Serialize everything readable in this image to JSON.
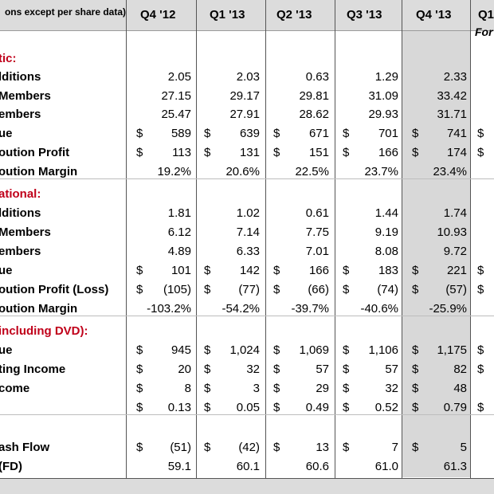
{
  "header": {
    "label": "ons except per share data)",
    "quarters": [
      "Q4 '12",
      "Q1 '13",
      "Q2 '13",
      "Q3 '13",
      "Q4 '13",
      "Q1"
    ],
    "forecast_fragment": "For"
  },
  "rows": [
    {
      "label": "tic:",
      "section": true
    },
    {
      "label": "lditions",
      "values": [
        "2.05",
        "2.03",
        "0.63",
        "1.29",
        "2.33"
      ]
    },
    {
      "label": "Members",
      "values": [
        "27.15",
        "29.17",
        "29.81",
        "31.09",
        "33.42"
      ]
    },
    {
      "label": "embers",
      "values": [
        "25.47",
        "27.91",
        "28.62",
        "29.93",
        "31.71"
      ]
    },
    {
      "label": "ue",
      "dollar": true,
      "values": [
        "589",
        "639",
        "671",
        "701",
        "741"
      ]
    },
    {
      "label": "oution Profit",
      "dollar": true,
      "values": [
        "113",
        "131",
        "151",
        "166",
        "174"
      ]
    },
    {
      "label": "oution Margin",
      "values": [
        "19.2%",
        "20.6%",
        "22.5%",
        "23.7%",
        "23.4%"
      ]
    },
    {
      "label": "ational:",
      "section": true
    },
    {
      "label": "lditions",
      "values": [
        "1.81",
        "1.02",
        "0.61",
        "1.44",
        "1.74"
      ]
    },
    {
      "label": "Members",
      "values": [
        "6.12",
        "7.14",
        "7.75",
        "9.19",
        "10.93"
      ]
    },
    {
      "label": "embers",
      "values": [
        "4.89",
        "6.33",
        "7.01",
        "8.08",
        "9.72"
      ]
    },
    {
      "label": "ue",
      "dollar": true,
      "values": [
        "101",
        "142",
        "166",
        "183",
        "221"
      ]
    },
    {
      "label": "oution Profit (Loss)",
      "dollar": true,
      "values": [
        "(105)",
        "(77)",
        "(66)",
        "(74)",
        "(57)"
      ]
    },
    {
      "label": "oution Margin",
      "values": [
        "-103.2%",
        "-54.2%",
        "-39.7%",
        "-40.6%",
        "-25.9%"
      ]
    },
    {
      "label": "including DVD):",
      "section": true
    },
    {
      "label": "ue",
      "dollar": true,
      "values": [
        "945",
        "1,024",
        "1,069",
        "1,106",
        "1,175"
      ]
    },
    {
      "label": "ting Income",
      "dollar": true,
      "values": [
        "20",
        "32",
        "57",
        "57",
        "82"
      ]
    },
    {
      "label": "come",
      "dollar": true,
      "values": [
        "8",
        "3",
        "29",
        "32",
        "48"
      ]
    },
    {
      "label": "",
      "dollar": true,
      "values": [
        "0.13",
        "0.05",
        "0.49",
        "0.52",
        "0.79"
      ]
    },
    {
      "label": "",
      "blank": true
    },
    {
      "label": "ash Flow",
      "dollar": true,
      "values": [
        "(51)",
        "(42)",
        "13",
        "7",
        "5"
      ]
    },
    {
      "label": "(FD)",
      "values": [
        "59.1",
        "60.1",
        "60.6",
        "61.0",
        "61.3"
      ]
    }
  ],
  "partial_dollar": "$"
}
